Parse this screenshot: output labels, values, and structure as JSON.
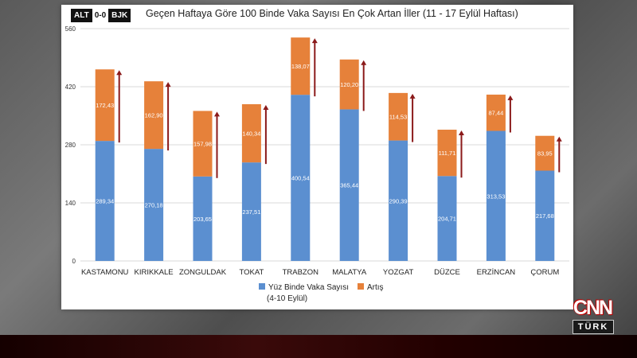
{
  "scoreboard": {
    "home": "ALT",
    "score": "0-0",
    "away": "BJK"
  },
  "logo": {
    "brand": "CNN",
    "sub": "TÜRK"
  },
  "chart_data": {
    "type": "bar",
    "stacked": true,
    "title": "Geçen Haftaya Göre 100 Binde Vaka Sayısı En Çok Artan İller (11 - 17 Eylül Haftası)",
    "categories": [
      "KASTAMONU",
      "KIRIKKALE",
      "ZONGULDAK",
      "TOKAT",
      "TRABZON",
      "MALATYA",
      "YOZGAT",
      "DÜZCE",
      "ERZİNCAN",
      "ÇORUM"
    ],
    "ylim": [
      0,
      560
    ],
    "yticks": [
      0,
      140,
      280,
      420,
      560
    ],
    "grid": true,
    "series": [
      {
        "name": "Yüz Binde Vaka Sayısı (4-10 Eylül)",
        "name_line1": "Yüz Binde Vaka Sayısı",
        "name_line2": "(4-10 Eylül)",
        "color": "#5b8fd0",
        "values": [
          289.34,
          270.18,
          203.65,
          237.51,
          400.54,
          365.44,
          290.39,
          204.71,
          313.53,
          217.68
        ],
        "labels": [
          "289,34",
          "270,18",
          "203,65",
          "237,51",
          "400,54",
          "365,44",
          "290,39",
          "204,71",
          "313,53",
          "217,68"
        ]
      },
      {
        "name": "Artış",
        "color": "#e6813a",
        "values": [
          172.43,
          162.9,
          157.98,
          140.34,
          138.07,
          120.2,
          114.53,
          111.71,
          87.44,
          83.95
        ],
        "labels": [
          "172,43",
          "162,90",
          "157,98",
          "140,34",
          "138,07",
          "120,20",
          "114,53",
          "111,71",
          "87,44",
          "83,95"
        ]
      }
    ],
    "legend_position": "bottom",
    "arrow_color": "#8b1a1a"
  }
}
